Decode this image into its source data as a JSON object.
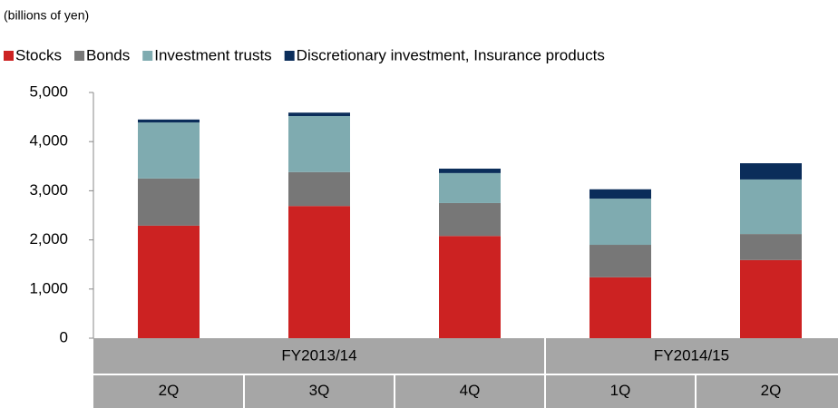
{
  "chart_data": {
    "type": "stacked_bar",
    "unit_label": "(billions of yen)",
    "categories": [
      "2Q",
      "3Q",
      "4Q",
      "1Q",
      "2Q"
    ],
    "category_groups": [
      "FY2013/14",
      "FY2013/14",
      "FY2013/14",
      "FY2014/15",
      "FY2014/15"
    ],
    "series": [
      {
        "name": "Stocks",
        "color": "#cc2222",
        "values": [
          2290,
          2690,
          2080,
          1240,
          1590
        ]
      },
      {
        "name": "Bonds",
        "color": "#777777",
        "values": [
          960,
          690,
          670,
          660,
          530
        ]
      },
      {
        "name": "Investment trusts",
        "color": "#7fabb0",
        "values": [
          1140,
          1140,
          610,
          940,
          1110
        ]
      },
      {
        "name": "Discretionary investment, Insurance products",
        "color": "#0b2d5a",
        "values": [
          60,
          70,
          90,
          190,
          330
        ]
      }
    ],
    "ylim": [
      0,
      5000
    ],
    "yticks": [
      0,
      {
        "value": 1000,
        "label": "1,000"
      },
      {
        "value": 2000,
        "label": "2,000"
      },
      {
        "value": 3000,
        "label": "3,000"
      },
      {
        "value": 4000,
        "label": "4,000"
      },
      {
        "value": 5000,
        "label": "5,000"
      }
    ],
    "grid": false
  }
}
